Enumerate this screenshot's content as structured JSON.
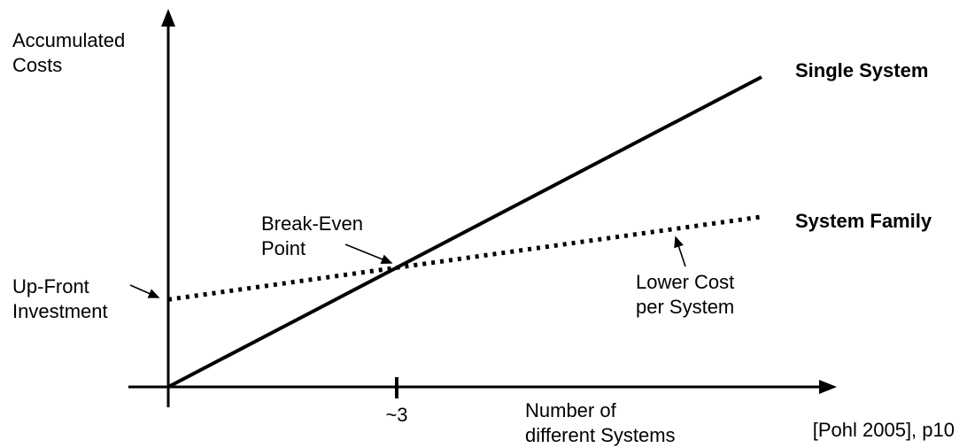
{
  "colors": {
    "ink": "#000000",
    "background": "#ffffff"
  },
  "labels": {
    "y_axis": "Accumulated\nCosts",
    "x_axis": "Number of\ndifferent Systems",
    "single_system": "Single System",
    "system_family": "System Family",
    "break_even": "Break-Even\nPoint",
    "up_front": "Up-Front\nInvestment",
    "lower_cost": "Lower Cost\nper System",
    "x_tick": "~3",
    "citation": "[Pohl 2005], p10"
  },
  "chart_data": {
    "type": "line",
    "xlabel": "Number of different Systems",
    "ylabel": "Accumulated Costs",
    "x_range": [
      0,
      10
    ],
    "y_range": [
      0,
      11
    ],
    "grid": false,
    "axes_numeric": false,
    "series": [
      {
        "name": "Single System",
        "style": "solid",
        "x": [
          0,
          10
        ],
        "y": [
          0,
          10
        ]
      },
      {
        "name": "System Family",
        "style": "dotted",
        "x": [
          0,
          10
        ],
        "y": [
          2.82,
          5.49
        ]
      }
    ],
    "x_ticks": [
      {
        "label": "~3",
        "at": "break-even point"
      }
    ],
    "annotations": [
      {
        "text": "Up-Front Investment",
        "points_to": "System Family y-intercept"
      },
      {
        "text": "Break-Even Point",
        "points_to": "intersection of the two lines"
      },
      {
        "text": "Lower Cost per System",
        "points_to": "System Family line (flatter slope)"
      }
    ],
    "citation": "[Pohl 2005], p10"
  }
}
